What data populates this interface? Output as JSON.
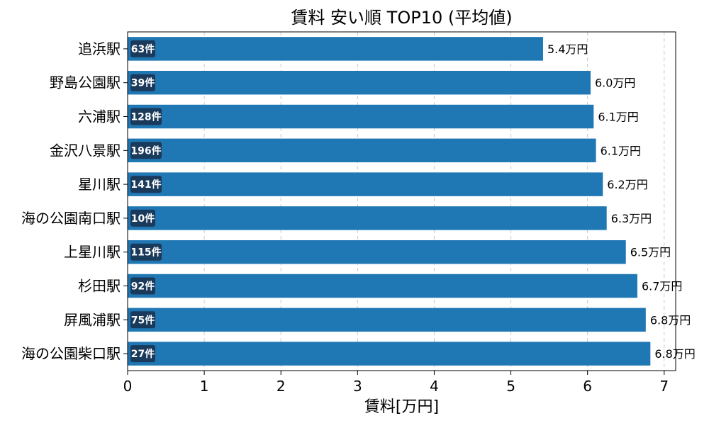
{
  "chart_data": {
    "type": "bar",
    "orientation": "horizontal",
    "title": "賃料 安い順 TOP10 (平均値)",
    "xlabel": "賃料[万円]",
    "ylabel": "",
    "xlim": [
      0,
      7.15
    ],
    "xticks": [
      0,
      1,
      2,
      3,
      4,
      5,
      6,
      7
    ],
    "grid": "x-dashed",
    "bar_color": "#1f77b4",
    "badge_color": "#1a3a5c",
    "value_suffix": "万円",
    "count_suffix": "件",
    "categories": [
      "追浜駅",
      "野島公園駅",
      "六浦駅",
      "金沢八景駅",
      "星川駅",
      "海の公園南口駅",
      "上星川駅",
      "杉田駅",
      "屏風浦駅",
      "海の公園柴口駅"
    ],
    "values": [
      5.42,
      6.04,
      6.08,
      6.11,
      6.2,
      6.25,
      6.5,
      6.65,
      6.76,
      6.82
    ],
    "value_labels": [
      "5.4",
      "6.0",
      "6.1",
      "6.1",
      "6.2",
      "6.3",
      "6.5",
      "6.7",
      "6.8",
      "6.8"
    ],
    "counts": [
      63,
      39,
      128,
      196,
      141,
      10,
      115,
      92,
      75,
      27
    ]
  }
}
